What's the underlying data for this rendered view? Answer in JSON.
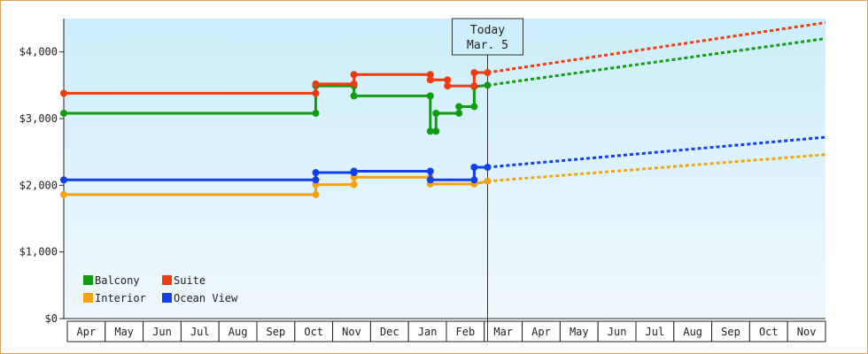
{
  "chart_data": {
    "type": "line",
    "title": "",
    "xlabel": "",
    "ylabel": "",
    "ylim": [
      0,
      4500
    ],
    "y_ticks": [
      {
        "value": 0,
        "label": "$0"
      },
      {
        "value": 1000,
        "label": "$1,000"
      },
      {
        "value": 2000,
        "label": "$2,000"
      },
      {
        "value": 3000,
        "label": "$3,000"
      },
      {
        "value": 4000,
        "label": "$4,000"
      }
    ],
    "months": [
      "Apr",
      "May",
      "Jun",
      "Jul",
      "Aug",
      "Sep",
      "Oct",
      "Nov",
      "Dec",
      "Jan",
      "Feb",
      "Mar",
      "Apr",
      "May",
      "Jun",
      "Jul",
      "Aug",
      "Sep",
      "Oct",
      "Nov"
    ],
    "x_domain_months": [
      0,
      19.95
    ],
    "today": {
      "line1": "Today",
      "line2": "Mar. 5",
      "x": 11.1
    },
    "grid": false,
    "legend_position": "bottom-left",
    "series": [
      {
        "name": "Balcony",
        "color": "#129c12",
        "points": [
          [
            0,
            3080
          ],
          [
            6.6,
            3080
          ],
          [
            6.6,
            3490
          ],
          [
            7.6,
            3490
          ],
          [
            7.6,
            3340
          ],
          [
            9.6,
            3340
          ],
          [
            9.6,
            2810
          ],
          [
            9.75,
            2810
          ],
          [
            9.75,
            3080
          ],
          [
            10.35,
            3080
          ],
          [
            10.35,
            3180
          ],
          [
            10.75,
            3180
          ],
          [
            10.75,
            3480
          ],
          [
            11.1,
            3500
          ]
        ],
        "forecast": [
          [
            11.1,
            3500
          ],
          [
            19.95,
            4200
          ]
        ]
      },
      {
        "name": "Suite",
        "color": "#ee3b10",
        "points": [
          [
            0,
            3380
          ],
          [
            6.6,
            3380
          ],
          [
            6.6,
            3520
          ],
          [
            7.6,
            3520
          ],
          [
            7.6,
            3660
          ],
          [
            9.6,
            3660
          ],
          [
            9.6,
            3580
          ],
          [
            10.05,
            3580
          ],
          [
            10.05,
            3490
          ],
          [
            10.75,
            3490
          ],
          [
            10.75,
            3690
          ],
          [
            11.1,
            3690
          ]
        ],
        "forecast": [
          [
            11.1,
            3690
          ],
          [
            19.95,
            4440
          ]
        ]
      },
      {
        "name": "Interior",
        "color": "#f2a30f",
        "points": [
          [
            0,
            1860
          ],
          [
            6.6,
            1860
          ],
          [
            6.6,
            2010
          ],
          [
            7.6,
            2010
          ],
          [
            7.6,
            2120
          ],
          [
            9.6,
            2120
          ],
          [
            9.6,
            2020
          ],
          [
            10.75,
            2020
          ],
          [
            11.1,
            2060
          ]
        ],
        "forecast": [
          [
            11.1,
            2060
          ],
          [
            19.95,
            2460
          ]
        ]
      },
      {
        "name": "Ocean View",
        "color": "#1040ee",
        "points": [
          [
            0,
            2080
          ],
          [
            6.6,
            2080
          ],
          [
            6.6,
            2190
          ],
          [
            7.6,
            2190
          ],
          [
            7.6,
            2210
          ],
          [
            9.6,
            2210
          ],
          [
            9.6,
            2080
          ],
          [
            10.75,
            2080
          ],
          [
            10.75,
            2270
          ],
          [
            11.1,
            2270
          ]
        ],
        "forecast": [
          [
            11.1,
            2270
          ],
          [
            19.95,
            2720
          ]
        ]
      }
    ]
  }
}
